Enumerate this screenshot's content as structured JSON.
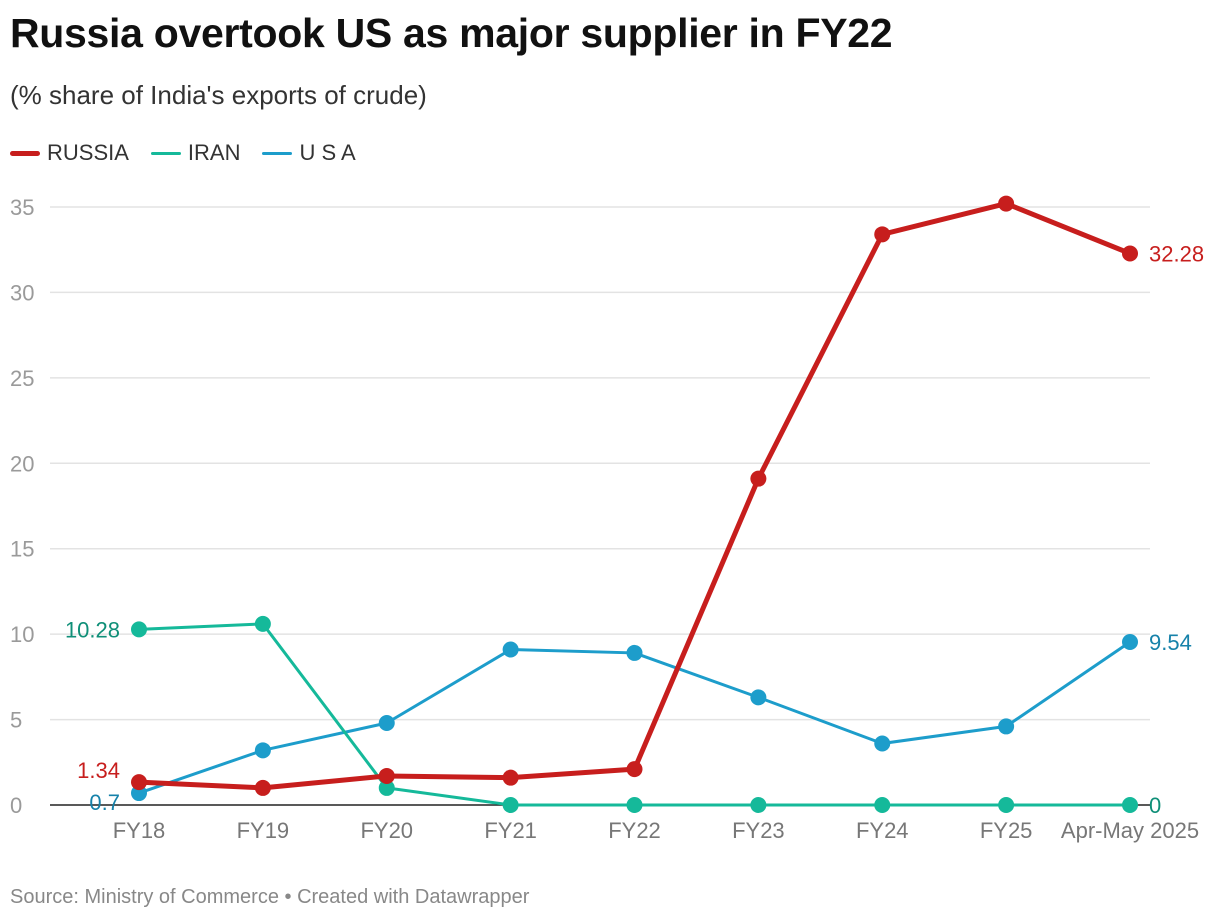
{
  "header": {
    "title": "Russia overtook US as major supplier in FY22",
    "subtitle": "(% share of India's exports of crude)"
  },
  "footer": {
    "source": "Source: Ministry of Commerce • Created with Datawrapper"
  },
  "chart_data": {
    "type": "line",
    "title": "Russia overtook US as major supplier in FY22",
    "subtitle": "(% share of India's exports of crude)",
    "xlabel": "",
    "ylabel": "",
    "categories": [
      "FY18",
      "FY19",
      "FY20",
      "FY21",
      "FY22",
      "FY23",
      "FY24",
      "FY25",
      "Apr-May 2025"
    ],
    "ylim": [
      0,
      35
    ],
    "yticks": [
      0,
      5,
      10,
      15,
      20,
      25,
      30,
      35
    ],
    "grid": true,
    "legend": "top-left",
    "series": [
      {
        "name": "RUSSIA",
        "color": "#c71e1d",
        "values": [
          1.34,
          1.0,
          1.7,
          1.6,
          2.1,
          19.1,
          33.4,
          35.2,
          32.28
        ],
        "start_label": "1.34",
        "end_label": "32.28"
      },
      {
        "name": "IRAN",
        "color": "#15b99a",
        "values": [
          10.28,
          10.6,
          1.0,
          0,
          0,
          0,
          0,
          0,
          0
        ],
        "start_label": "10.28",
        "end_label": "0"
      },
      {
        "name": "U S A",
        "color": "#1d9dcb",
        "values": [
          0.7,
          3.2,
          4.8,
          9.1,
          8.9,
          6.3,
          3.6,
          4.6,
          9.54
        ],
        "start_label": "0.7",
        "end_label": "9.54"
      }
    ]
  }
}
